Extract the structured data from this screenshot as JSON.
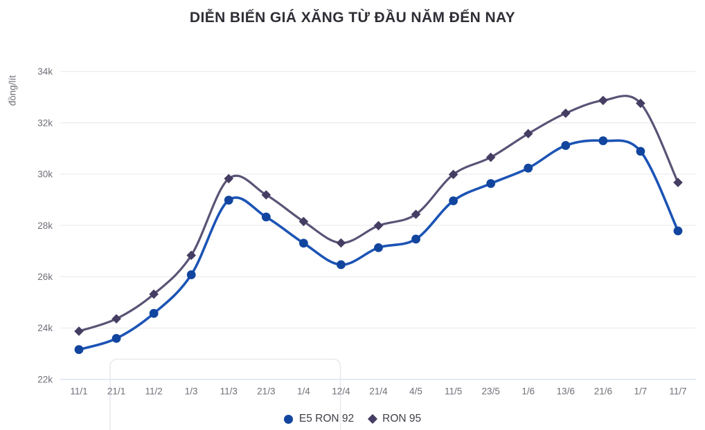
{
  "chart_data": {
    "type": "line",
    "title": "DIỄN BIẾN GIÁ XĂNG TỪ ĐẦU NĂM ĐẾN NAY",
    "y_axis_title": "đồng/lít",
    "x": [
      "11/1",
      "21/1",
      "11/2",
      "1/3",
      "11/3",
      "21/3",
      "1/4",
      "12/4",
      "21/4",
      "4/5",
      "11/5",
      "23/5",
      "1/6",
      "13/6",
      "21/6",
      "1/7",
      "11/7"
    ],
    "series": [
      {
        "name": "E5 RON 92",
        "marker": "circle",
        "line_color": "#1b54b4",
        "marker_color": "#12469e",
        "values": [
          23159,
          23595,
          24571,
          26077,
          28985,
          28330,
          27309,
          26470,
          27134,
          27468,
          28959,
          29633,
          30235,
          31117,
          31302,
          30891,
          27788
        ]
      },
      {
        "name": "RON 95",
        "marker": "diamond",
        "line_color": "#5b5376",
        "marker_color": "#453e62",
        "values": [
          23876,
          24360,
          25322,
          26834,
          29824,
          29192,
          28153,
          27317,
          27992,
          28434,
          29988,
          30657,
          31578,
          32375,
          32873,
          32763,
          29675
        ]
      }
    ],
    "y_ticks": [
      {
        "value": 22000,
        "label": "22k"
      },
      {
        "value": 24000,
        "label": "24k"
      },
      {
        "value": 26000,
        "label": "26k"
      },
      {
        "value": 28000,
        "label": "28k"
      },
      {
        "value": 30000,
        "label": "30k"
      },
      {
        "value": 32000,
        "label": "32k"
      },
      {
        "value": 34000,
        "label": "34k"
      }
    ],
    "ylim": [
      22000,
      34000
    ],
    "grid": "horizontal",
    "legend_position": "bottom"
  },
  "colors": {
    "background": "#ffffff",
    "gridline": "#ededf0",
    "baseline": "#d9e2f3",
    "tick_text": "#6f6f79",
    "title_text": "#2e2e36",
    "legend_text": "#3f3f49",
    "panel_border": "#e9e9ee"
  }
}
